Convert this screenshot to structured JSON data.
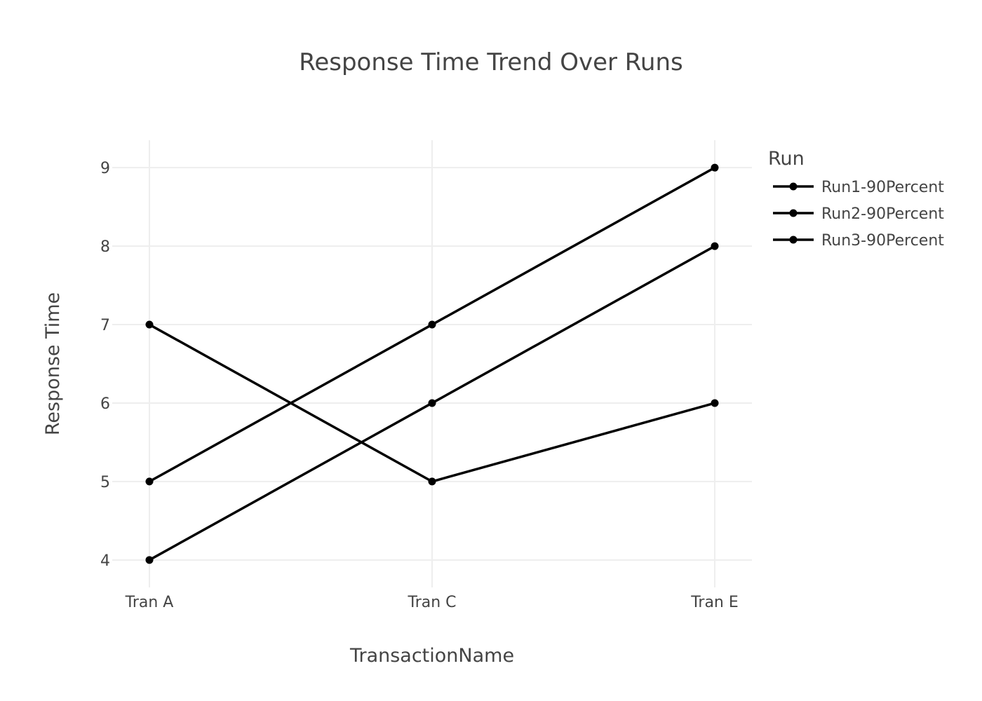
{
  "chart_data": {
    "type": "line",
    "title": "Response Time Trend Over Runs",
    "xlabel": "TransactionName",
    "ylabel": "Response Time",
    "categories": [
      "Tran A",
      "Tran C",
      "Tran E"
    ],
    "ylim": [
      3.65,
      9.35
    ],
    "yticks": [
      4,
      5,
      6,
      7,
      8,
      9
    ],
    "grid": true,
    "legend": {
      "title": "Run",
      "placement": "top-right"
    },
    "series": [
      {
        "name": "Run1-90Percent",
        "values": [
          5,
          7,
          9
        ],
        "color": "#000000"
      },
      {
        "name": "Run2-90Percent",
        "values": [
          4,
          6,
          8
        ],
        "color": "#000000"
      },
      {
        "name": "Run3-90Percent",
        "values": [
          7,
          5,
          6
        ],
        "color": "#000000"
      }
    ]
  }
}
